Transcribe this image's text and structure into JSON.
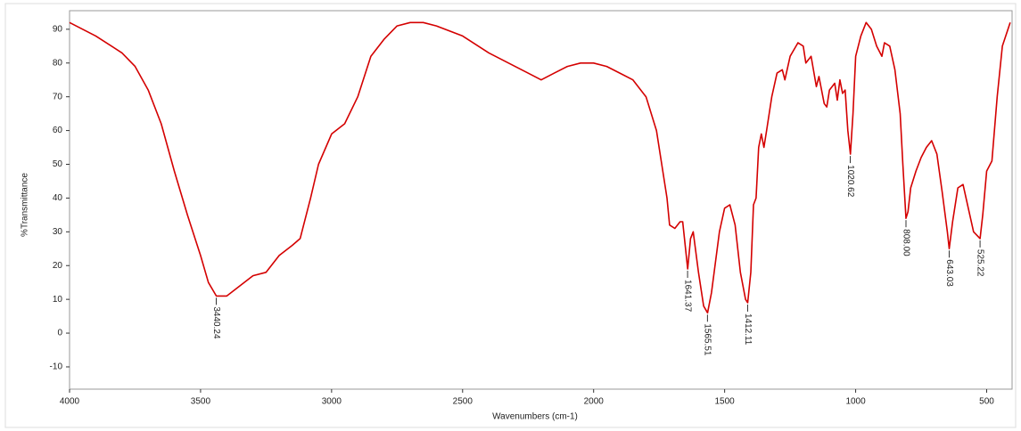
{
  "chart_data": {
    "type": "line",
    "xlabel": "Wavenumbers (cm-1)",
    "ylabel": "%Transmittance",
    "color": "#d40000",
    "xlim": [
      4000,
      403
    ],
    "ylim": [
      -16.6,
      95.5
    ],
    "xticks": [
      4000,
      3500,
      3000,
      2500,
      2000,
      1500,
      1000,
      500
    ],
    "yticks": [
      -10,
      0,
      10,
      20,
      30,
      40,
      50,
      60,
      70,
      80,
      90
    ],
    "x": [
      4000,
      3900,
      3800,
      3750,
      3700,
      3650,
      3600,
      3550,
      3500,
      3470,
      3440,
      3400,
      3350,
      3300,
      3250,
      3200,
      3150,
      3120,
      3080,
      3050,
      3000,
      2950,
      2900,
      2850,
      2800,
      2750,
      2700,
      2650,
      2600,
      2500,
      2400,
      2300,
      2250,
      2200,
      2150,
      2100,
      2050,
      2000,
      1950,
      1900,
      1850,
      1800,
      1760,
      1740,
      1720,
      1710,
      1690,
      1670,
      1660,
      1641,
      1630,
      1620,
      1600,
      1580,
      1565,
      1550,
      1520,
      1500,
      1480,
      1460,
      1440,
      1420,
      1412,
      1400,
      1390,
      1380,
      1370,
      1360,
      1350,
      1340,
      1320,
      1300,
      1280,
      1270,
      1250,
      1220,
      1200,
      1190,
      1170,
      1150,
      1140,
      1120,
      1110,
      1100,
      1080,
      1070,
      1060,
      1050,
      1040,
      1030,
      1020,
      1010,
      1000,
      980,
      960,
      940,
      920,
      900,
      890,
      870,
      850,
      830,
      820,
      808,
      800,
      790,
      770,
      750,
      730,
      710,
      690,
      670,
      650,
      643,
      630,
      610,
      590,
      570,
      550,
      525,
      515,
      500,
      480,
      460,
      440,
      410
    ],
    "values": [
      92,
      88,
      83,
      79,
      72,
      62,
      48,
      35,
      23,
      15,
      11,
      11,
      14,
      17,
      18,
      23,
      26,
      28,
      40,
      50,
      59,
      62,
      70,
      82,
      87,
      91,
      92,
      92,
      91,
      88,
      83,
      79,
      77,
      75,
      77,
      79,
      80,
      80,
      79,
      77,
      75,
      70,
      60,
      50,
      40,
      32,
      31,
      33,
      33,
      19,
      28,
      30,
      18,
      8,
      6,
      12,
      30,
      37,
      38,
      32,
      18,
      10,
      9,
      18,
      38,
      40,
      55,
      59,
      55,
      60,
      70,
      77,
      78,
      75,
      82,
      86,
      85,
      80,
      82,
      73,
      76,
      68,
      67,
      72,
      74,
      69,
      75,
      71,
      72,
      60,
      53,
      65,
      82,
      88,
      92,
      90,
      85,
      82,
      86,
      85,
      78,
      65,
      50,
      34,
      36,
      43,
      48,
      52,
      55,
      57,
      53,
      42,
      30,
      25,
      33,
      43,
      44,
      37,
      30,
      28,
      35,
      48,
      51,
      70,
      85,
      92
    ],
    "peaks": [
      {
        "x": 3440.24,
        "y": 11,
        "label": "3440.24"
      },
      {
        "x": 1641.37,
        "y": 19,
        "label": "1641.37"
      },
      {
        "x": 1565.51,
        "y": 6,
        "label": "1565.51"
      },
      {
        "x": 1412.11,
        "y": 9,
        "label": "1412.11"
      },
      {
        "x": 1020.62,
        "y": 53,
        "label": "1020.62"
      },
      {
        "x": 808.0,
        "y": 34,
        "label": "808.00"
      },
      {
        "x": 643.03,
        "y": 25,
        "label": "643.03"
      },
      {
        "x": 525.22,
        "y": 28,
        "label": "525.22"
      }
    ]
  }
}
